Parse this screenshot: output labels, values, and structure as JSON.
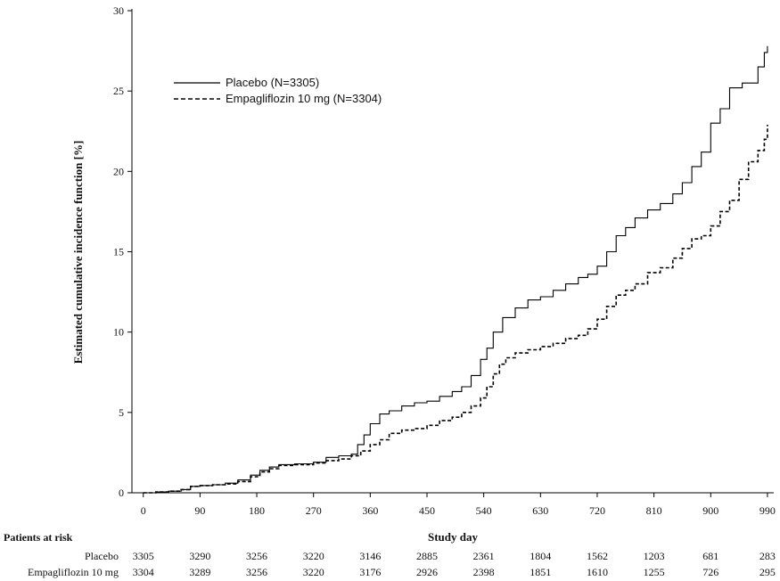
{
  "chart_data": {
    "type": "line",
    "title": "",
    "xlabel": "Study day",
    "ylabel": "Estimated cumulative incidence function [%]",
    "xlim": [
      -18,
      1000
    ],
    "ylim": [
      0,
      30
    ],
    "xticks": [
      0,
      90,
      180,
      270,
      360,
      450,
      540,
      630,
      720,
      810,
      900,
      990
    ],
    "yticks": [
      0,
      5,
      10,
      15,
      20,
      25,
      30
    ],
    "grid": false,
    "legend": "top-left",
    "series": [
      {
        "name": "Placebo (N=3305)",
        "style": "solid",
        "color": "#000000",
        "x": [
          0,
          20,
          40,
          60,
          75,
          90,
          110,
          130,
          150,
          170,
          185,
          200,
          215,
          240,
          270,
          290,
          310,
          330,
          340,
          350,
          360,
          375,
          390,
          410,
          430,
          450,
          470,
          490,
          505,
          520,
          535,
          545,
          555,
          570,
          590,
          610,
          630,
          650,
          670,
          690,
          705,
          720,
          735,
          750,
          765,
          780,
          800,
          820,
          840,
          855,
          870,
          885,
          900,
          915,
          930,
          950,
          965,
          975,
          985,
          990
        ],
        "y": [
          0,
          0.05,
          0.1,
          0.2,
          0.4,
          0.45,
          0.5,
          0.6,
          0.8,
          1.1,
          1.4,
          1.6,
          1.75,
          1.8,
          1.9,
          2.2,
          2.3,
          2.4,
          3.0,
          3.6,
          4.3,
          4.9,
          5.1,
          5.4,
          5.6,
          5.7,
          6.0,
          6.3,
          6.6,
          7.3,
          8.3,
          9.0,
          10.0,
          10.9,
          11.5,
          12.0,
          12.2,
          12.6,
          13.0,
          13.4,
          13.6,
          14.1,
          15.0,
          16.0,
          16.5,
          17.1,
          17.6,
          18.0,
          18.6,
          19.3,
          20.3,
          21.2,
          23.0,
          23.9,
          25.2,
          25.5,
          25.5,
          26.5,
          27.4,
          27.8
        ]
      },
      {
        "name": "Empagliflozin 10 mg (N=3304)",
        "style": "dashed",
        "color": "#000000",
        "x": [
          0,
          20,
          40,
          60,
          75,
          90,
          110,
          130,
          150,
          170,
          185,
          200,
          215,
          240,
          270,
          290,
          310,
          330,
          345,
          360,
          375,
          390,
          410,
          430,
          450,
          470,
          490,
          505,
          520,
          535,
          545,
          555,
          565,
          575,
          590,
          610,
          630,
          650,
          670,
          690,
          705,
          720,
          735,
          750,
          765,
          780,
          800,
          820,
          840,
          855,
          870,
          885,
          900,
          915,
          930,
          945,
          960,
          975,
          985,
          990
        ],
        "y": [
          0,
          0.05,
          0.1,
          0.2,
          0.4,
          0.45,
          0.5,
          0.55,
          0.7,
          1.0,
          1.3,
          1.5,
          1.7,
          1.75,
          1.85,
          2.0,
          2.1,
          2.3,
          2.6,
          3.0,
          3.3,
          3.7,
          3.9,
          4.0,
          4.2,
          4.5,
          4.7,
          5.0,
          5.4,
          5.9,
          6.6,
          7.4,
          8.0,
          8.4,
          8.7,
          8.9,
          9.1,
          9.3,
          9.6,
          9.8,
          10.2,
          10.8,
          11.6,
          12.3,
          12.6,
          13.0,
          13.7,
          14.0,
          14.6,
          15.2,
          15.8,
          16.0,
          16.6,
          17.5,
          18.2,
          19.5,
          20.6,
          21.3,
          22.0,
          22.9
        ]
      }
    ]
  },
  "at_risk": {
    "heading": "Patients at risk",
    "rows": [
      {
        "label": "Placebo",
        "values": [
          "3305",
          "3290",
          "3256",
          "3220",
          "3146",
          "2885",
          "2361",
          "1804",
          "1562",
          "1203",
          "681",
          "283"
        ]
      },
      {
        "label": "Empagliflozin 10 mg",
        "values": [
          "3304",
          "3289",
          "3256",
          "3220",
          "3176",
          "2926",
          "2398",
          "1851",
          "1610",
          "1255",
          "726",
          "295"
        ]
      }
    ]
  }
}
